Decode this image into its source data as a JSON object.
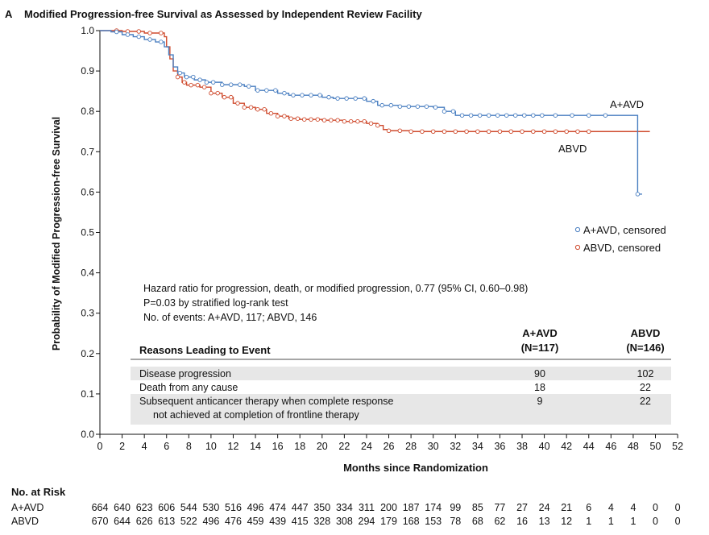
{
  "panel_letter": "A",
  "chart_data": {
    "type": "line",
    "title": "Modified Progression-free Survival as Assessed by Independent Review Facility",
    "xlabel": "Months since Randomization",
    "ylabel": "Probability of Modified Progression-free Survival",
    "xlim": [
      0,
      52
    ],
    "ylim": [
      0.0,
      1.0
    ],
    "x_ticks": [
      0,
      2,
      4,
      6,
      8,
      10,
      12,
      14,
      16,
      18,
      20,
      22,
      24,
      26,
      28,
      30,
      32,
      34,
      36,
      38,
      40,
      42,
      44,
      46,
      48,
      50,
      52
    ],
    "y_ticks": [
      0.0,
      0.1,
      0.2,
      0.3,
      0.4,
      0.5,
      0.6,
      0.7,
      0.8,
      0.9,
      1.0
    ],
    "y_tick_labels": [
      "0.0",
      "0.1",
      "0.2",
      "0.3",
      "0.4",
      "0.5",
      "0.6",
      "0.7",
      "0.8",
      "0.9",
      "1.0"
    ],
    "grid": false,
    "legend_position": "right-middle",
    "series": [
      {
        "name": "A+AVD",
        "label": "A+AVD",
        "legend": "A+AVD, censored",
        "color": "#4a7fc1",
        "steps": [
          [
            0,
            1.0
          ],
          [
            1,
            0.997
          ],
          [
            2,
            0.99
          ],
          [
            3,
            0.985
          ],
          [
            4,
            0.978
          ],
          [
            5,
            0.972
          ],
          [
            5.8,
            0.96
          ],
          [
            6.2,
            0.94
          ],
          [
            6.6,
            0.91
          ],
          [
            7,
            0.895
          ],
          [
            7.6,
            0.885
          ],
          [
            8.5,
            0.878
          ],
          [
            9.5,
            0.872
          ],
          [
            11,
            0.866
          ],
          [
            13,
            0.862
          ],
          [
            14,
            0.852
          ],
          [
            16,
            0.845
          ],
          [
            17,
            0.84
          ],
          [
            20,
            0.835
          ],
          [
            21,
            0.832
          ],
          [
            24,
            0.825
          ],
          [
            25,
            0.815
          ],
          [
            27,
            0.812
          ],
          [
            30,
            0.81
          ],
          [
            31,
            0.8
          ],
          [
            32,
            0.79
          ],
          [
            36,
            0.79
          ],
          [
            48.4,
            0.79
          ],
          [
            48.4,
            0.595
          ],
          [
            48.8,
            0.595
          ]
        ],
        "censor_x": [
          1.5,
          2.5,
          3.5,
          4.5,
          5.5,
          7.2,
          7.8,
          8.4,
          9,
          9.6,
          10.2,
          11,
          11.8,
          12.6,
          13.4,
          14.2,
          15,
          15.8,
          16.6,
          17.4,
          18.2,
          19,
          19.8,
          20.6,
          21.4,
          22.2,
          23,
          23.8,
          24.6,
          25.4,
          26.2,
          27,
          27.8,
          28.6,
          29.4,
          30.2,
          31,
          31.8,
          32.6,
          33.4,
          34.2,
          35,
          35.8,
          36.6,
          37.4,
          38.2,
          39,
          39.8,
          41,
          42.5,
          44,
          45.5,
          48.4
        ]
      },
      {
        "name": "ABVD",
        "label": "ABVD",
        "legend": "ABVD, censored",
        "color": "#cf4b2e",
        "steps": [
          [
            0,
            1.0
          ],
          [
            2,
            0.998
          ],
          [
            4,
            0.994
          ],
          [
            5.8,
            0.985
          ],
          [
            6.0,
            0.96
          ],
          [
            6.3,
            0.93
          ],
          [
            6.6,
            0.9
          ],
          [
            7,
            0.885
          ],
          [
            7.4,
            0.872
          ],
          [
            7.8,
            0.865
          ],
          [
            9,
            0.86
          ],
          [
            10,
            0.845
          ],
          [
            11,
            0.835
          ],
          [
            12,
            0.82
          ],
          [
            13,
            0.81
          ],
          [
            14,
            0.805
          ],
          [
            15,
            0.795
          ],
          [
            16,
            0.788
          ],
          [
            17,
            0.782
          ],
          [
            18,
            0.78
          ],
          [
            20,
            0.778
          ],
          [
            22,
            0.775
          ],
          [
            24,
            0.77
          ],
          [
            25,
            0.765
          ],
          [
            25.5,
            0.755
          ],
          [
            26,
            0.752
          ],
          [
            28,
            0.75
          ],
          [
            49,
            0.75
          ],
          [
            49.5,
            0.75
          ]
        ],
        "censor_x": [
          1.5,
          2.5,
          3.5,
          4.5,
          5.5,
          7,
          7.6,
          8.2,
          8.8,
          9.4,
          10,
          10.6,
          11.2,
          11.8,
          12.4,
          13,
          13.6,
          14.2,
          14.8,
          15.4,
          16,
          16.6,
          17.2,
          17.8,
          18.4,
          19,
          19.6,
          20.2,
          20.8,
          21.4,
          22,
          22.6,
          23.2,
          23.8,
          24.4,
          25,
          26,
          27,
          28,
          29,
          30,
          31,
          32,
          33,
          34,
          35,
          36,
          37,
          38,
          39,
          40,
          41,
          42,
          43,
          44
        ]
      }
    ],
    "annotations": {
      "hazard_line": "Hazard ratio for progression, death, or modified progression, 0.77 (95% CI, 0.60–0.98)",
      "p_line": "P=0.03 by stratified log-rank test",
      "events_line": "No. of events: A+AVD, 117; ABVD, 146"
    },
    "reasons_table": {
      "header": "Reasons Leading to Event",
      "col1_line1": "A+AVD",
      "col1_line2": "(N=117)",
      "col2_line1": "ABVD",
      "col2_line2": "(N=146)",
      "rows": [
        {
          "label": "Disease progression",
          "label2": "",
          "v1": "90",
          "v2": "102"
        },
        {
          "label": "Death from any cause",
          "label2": "",
          "v1": "18",
          "v2": "22"
        },
        {
          "label": "Subsequent anticancer therapy when complete response",
          "label2": "not achieved at completion of frontline therapy",
          "v1": "9",
          "v2": "22"
        }
      ]
    },
    "risk_table": {
      "title": "No. at Risk",
      "rows": [
        {
          "label": "A+AVD",
          "values": [
            "664",
            "640",
            "623",
            "606",
            "544",
            "530",
            "516",
            "496",
            "474",
            "447",
            "350",
            "334",
            "311",
            "200",
            "187",
            "174",
            "99",
            "85",
            "77",
            "27",
            "24",
            "21",
            "6",
            "4",
            "4",
            "0",
            "0"
          ]
        },
        {
          "label": "ABVD",
          "values": [
            "670",
            "644",
            "626",
            "613",
            "522",
            "496",
            "476",
            "459",
            "439",
            "415",
            "328",
            "308",
            "294",
            "179",
            "168",
            "153",
            "78",
            "68",
            "62",
            "16",
            "13",
            "12",
            "1",
            "1",
            "1",
            "0",
            "0"
          ]
        }
      ]
    }
  }
}
